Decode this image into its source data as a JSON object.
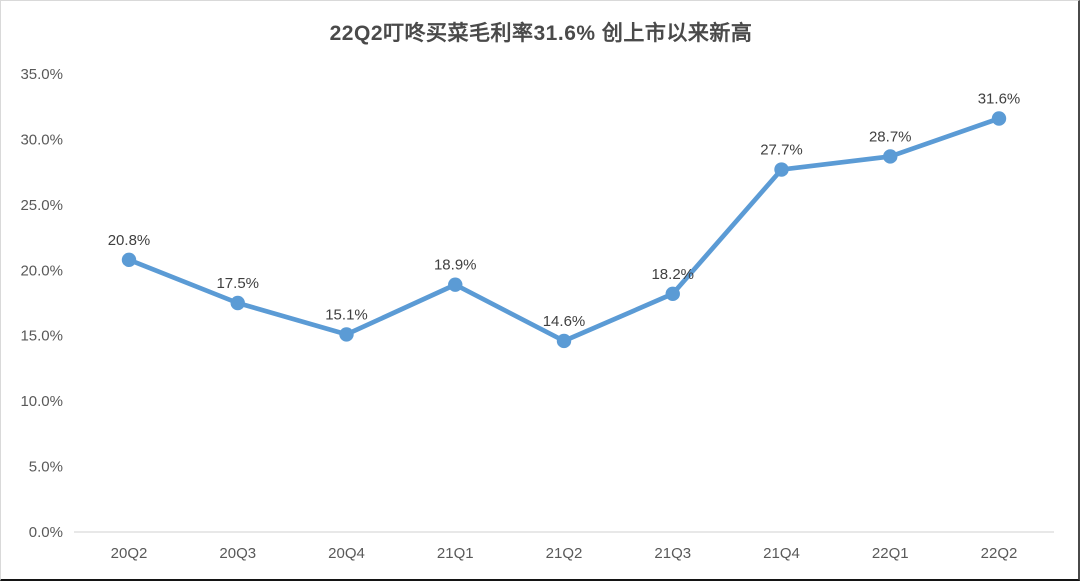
{
  "chart_data": {
    "type": "line",
    "title": "22Q2叮咚买菜毛利率31.6% 创上市以来新高",
    "categories": [
      "20Q2",
      "20Q3",
      "20Q4",
      "21Q1",
      "21Q2",
      "21Q3",
      "21Q4",
      "22Q1",
      "22Q2"
    ],
    "series": [
      {
        "name": "毛利率",
        "values": [
          20.8,
          17.5,
          15.1,
          18.9,
          14.6,
          18.2,
          27.7,
          28.7,
          31.6
        ],
        "point_labels": [
          "20.8%",
          "17.5%",
          "15.1%",
          "18.9%",
          "14.6%",
          "18.2%",
          "27.7%",
          "28.7%",
          "31.6%"
        ]
      }
    ],
    "xlabel": "",
    "ylabel": "",
    "ylim": [
      0,
      35
    ],
    "y_tick_step": 5,
    "y_tick_labels": [
      "0.0%",
      "5.0%",
      "10.0%",
      "15.0%",
      "20.0%",
      "25.0%",
      "30.0%",
      "35.0%"
    ],
    "grid": false,
    "legend_position": "none",
    "colors": {
      "line": "#5B9BD5",
      "marker": "#5B9BD5",
      "axis_line": "#D9D9D9",
      "tick_label": "#595959",
      "data_label": "#404040",
      "title": "#4A4A4A",
      "background": "#FFFFFF"
    }
  }
}
